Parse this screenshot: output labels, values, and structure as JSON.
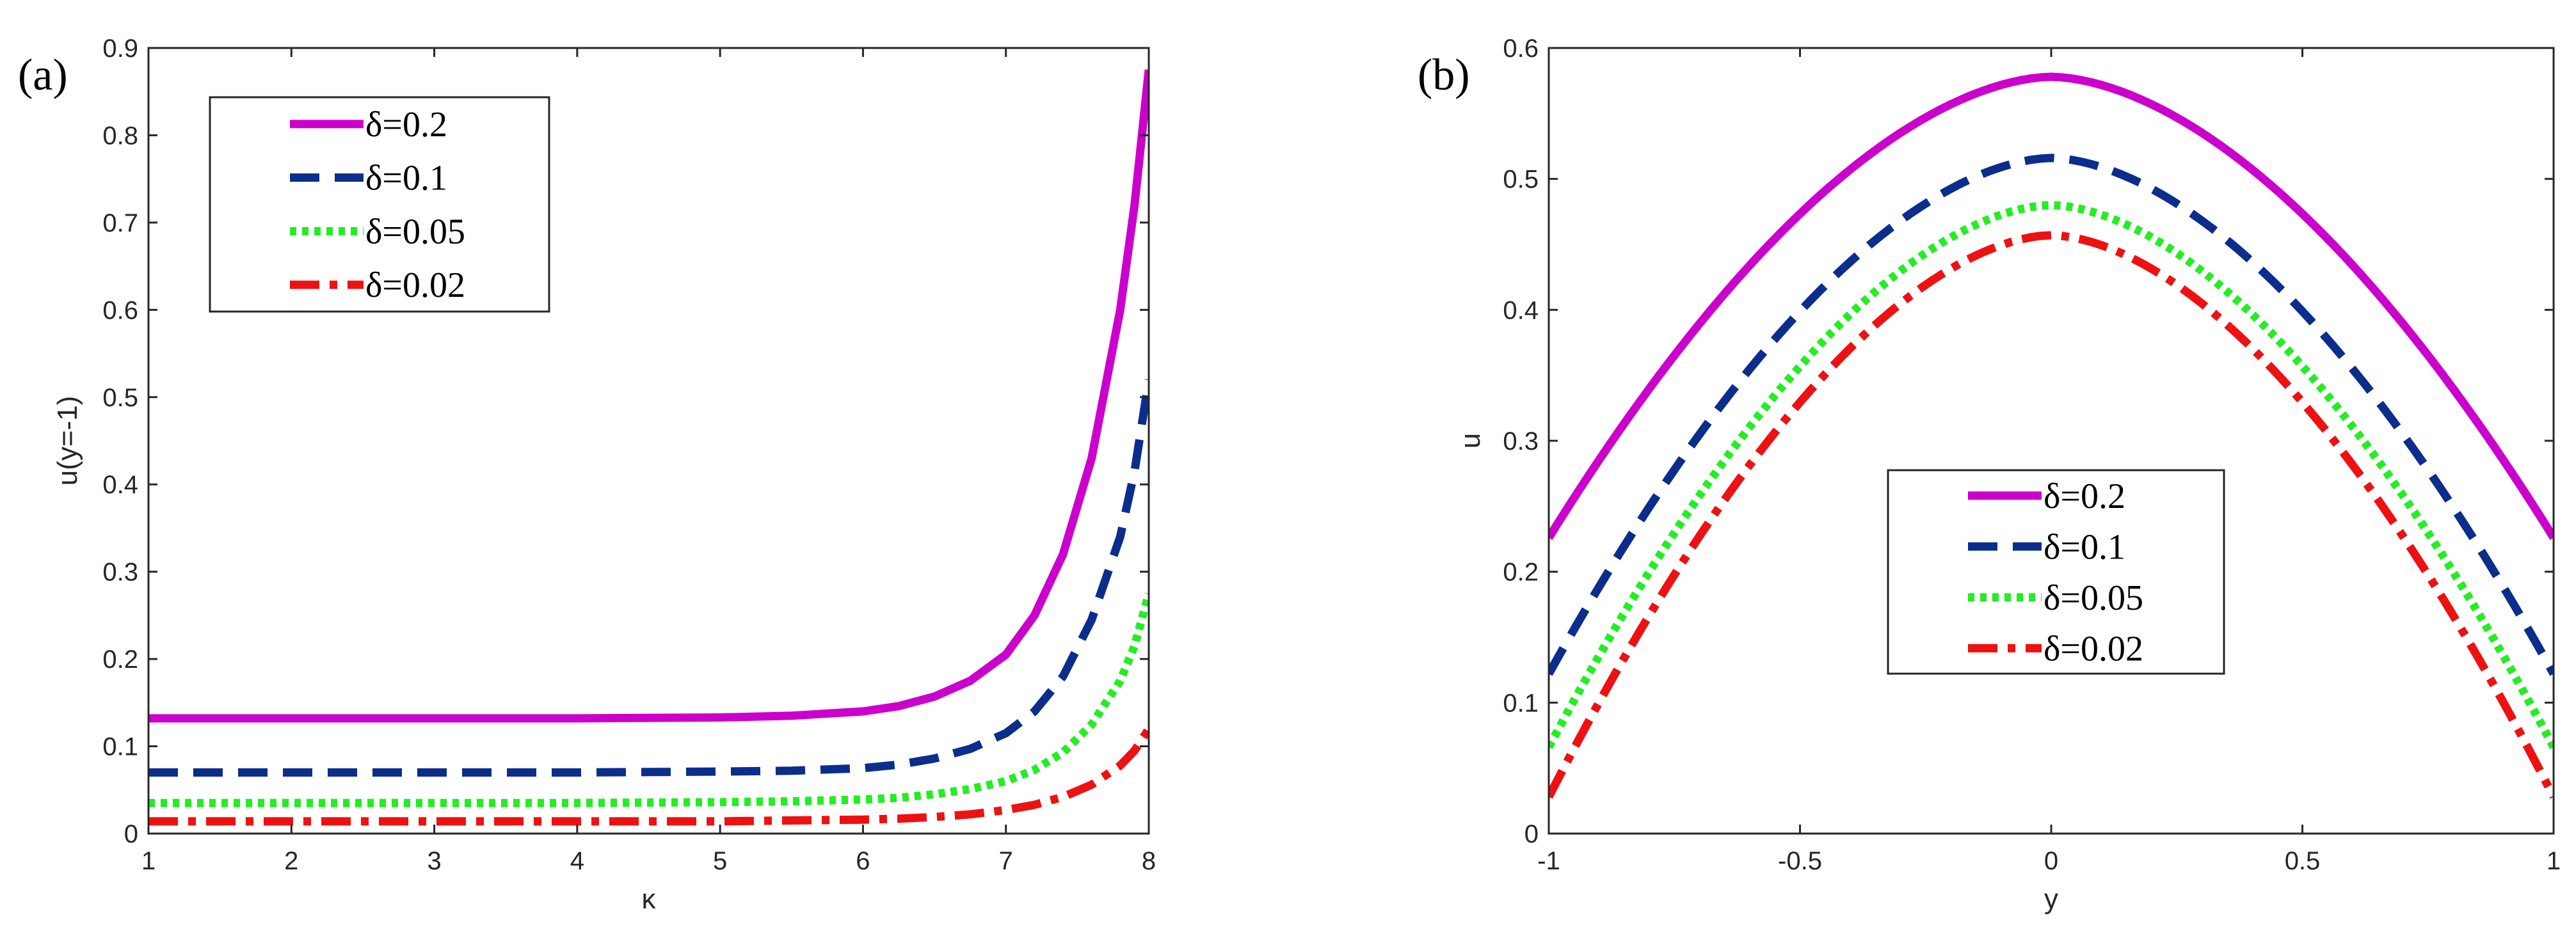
{
  "chart_data": [
    {
      "type": "line",
      "panel_label": "(a)",
      "title": "",
      "xlabel": "κ",
      "ylabel": "u(y=-1)",
      "xlim": [
        1,
        8
      ],
      "ylim": [
        0,
        0.9
      ],
      "xticks": [
        "1",
        "2",
        "3",
        "4",
        "5",
        "6",
        "7",
        "8"
      ],
      "yticks": [
        "0",
        "0.1",
        "0.2",
        "0.3",
        "0.4",
        "0.5",
        "0.6",
        "0.7",
        "0.8",
        "0.9"
      ],
      "legend_position": "top-left",
      "series": [
        {
          "name": "δ=0.2",
          "color": "#cc00cc",
          "dash": "solid",
          "x": [
            1,
            2,
            3,
            4,
            5,
            5.5,
            6,
            6.25,
            6.5,
            6.75,
            7,
            7.2,
            7.4,
            7.6,
            7.8,
            7.9,
            8
          ],
          "y": [
            0.132,
            0.132,
            0.132,
            0.132,
            0.133,
            0.135,
            0.14,
            0.146,
            0.157,
            0.175,
            0.205,
            0.25,
            0.32,
            0.43,
            0.6,
            0.72,
            0.875
          ]
        },
        {
          "name": "δ=0.1",
          "color": "#0b2d8c",
          "dash": "dash",
          "x": [
            1,
            2,
            3,
            4,
            5,
            5.5,
            6,
            6.25,
            6.5,
            6.75,
            7,
            7.2,
            7.4,
            7.6,
            7.8,
            7.9,
            8
          ],
          "y": [
            0.07,
            0.07,
            0.07,
            0.07,
            0.071,
            0.072,
            0.075,
            0.079,
            0.086,
            0.097,
            0.115,
            0.14,
            0.18,
            0.245,
            0.34,
            0.415,
            0.52
          ]
        },
        {
          "name": "δ=0.05",
          "color": "#22ee22",
          "dash": "dot",
          "x": [
            1,
            2,
            3,
            4,
            5,
            5.5,
            6,
            6.25,
            6.5,
            6.75,
            7,
            7.2,
            7.4,
            7.6,
            7.8,
            7.9,
            8
          ],
          "y": [
            0.035,
            0.035,
            0.035,
            0.035,
            0.036,
            0.037,
            0.039,
            0.041,
            0.045,
            0.051,
            0.06,
            0.073,
            0.093,
            0.125,
            0.175,
            0.215,
            0.275
          ]
        },
        {
          "name": "δ=0.02",
          "color": "#ee1111",
          "dash": "dashdot",
          "x": [
            1,
            2,
            3,
            4,
            5,
            5.5,
            6,
            6.25,
            6.5,
            6.75,
            7,
            7.2,
            7.4,
            7.6,
            7.8,
            7.9,
            8
          ],
          "y": [
            0.014,
            0.014,
            0.014,
            0.014,
            0.014,
            0.015,
            0.016,
            0.017,
            0.019,
            0.022,
            0.027,
            0.033,
            0.042,
            0.056,
            0.078,
            0.095,
            0.12
          ]
        }
      ]
    },
    {
      "type": "line",
      "panel_label": "(b)",
      "title": "",
      "xlabel": "y",
      "ylabel": "u",
      "xlim": [
        -1,
        1
      ],
      "ylim": [
        0,
        0.6
      ],
      "xticks": [
        "-1",
        "-0.5",
        "0",
        "0.5",
        "1"
      ],
      "yticks": [
        "0",
        "0.1",
        "0.2",
        "0.3",
        "0.4",
        "0.5",
        "0.6"
      ],
      "legend_position": "center-bottom",
      "series": [
        {
          "name": "δ=0.2",
          "color": "#cc00cc",
          "dash": "solid",
          "u0": 0.578,
          "u1": 0.226
        },
        {
          "name": "δ=0.1",
          "color": "#0b2d8c",
          "dash": "dash",
          "u0": 0.516,
          "u1": 0.122
        },
        {
          "name": "δ=0.05",
          "color": "#22ee22",
          "dash": "dot",
          "u0": 0.48,
          "u1": 0.066
        },
        {
          "name": "δ=0.02",
          "color": "#ee1111",
          "dash": "dashdot",
          "u0": 0.457,
          "u1": 0.028
        }
      ]
    }
  ]
}
